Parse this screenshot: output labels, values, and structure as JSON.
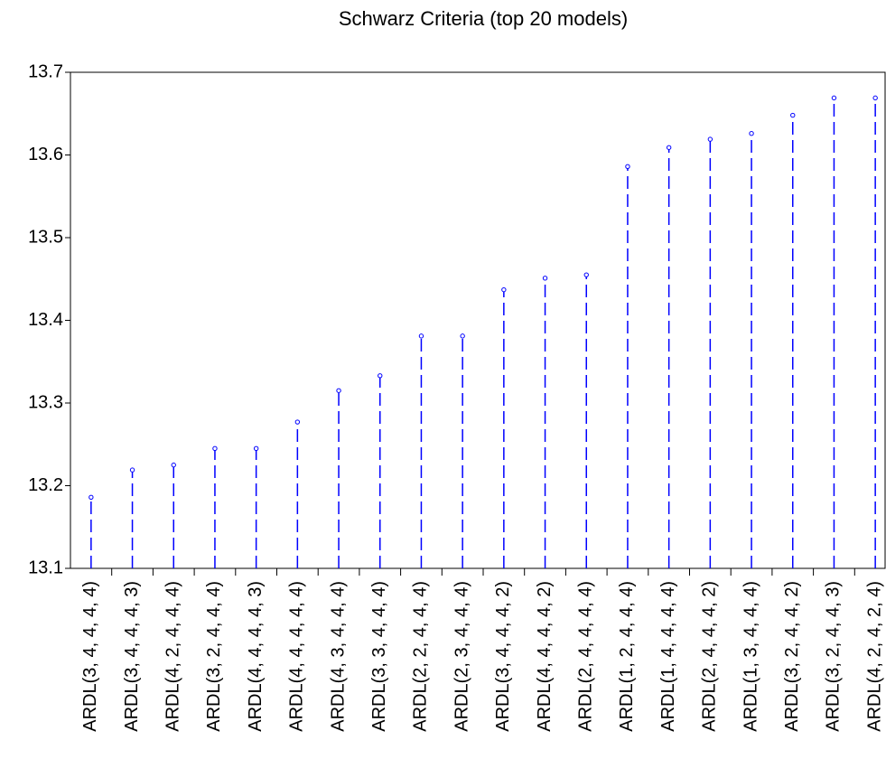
{
  "chart_data": {
    "type": "stem",
    "title": "Schwarz Criteria (top 20 models)",
    "categories": [
      "ARDL(3, 4, 4, 4, 4)",
      "ARDL(3, 4, 4, 4, 3)",
      "ARDL(4, 2, 4, 4, 4)",
      "ARDL(3, 2, 4, 4, 4)",
      "ARDL(4, 4, 4, 4, 3)",
      "ARDL(4, 4, 4, 4, 4)",
      "ARDL(4, 3, 4, 4, 4)",
      "ARDL(3, 3, 4, 4, 4)",
      "ARDL(2, 2, 4, 4, 4)",
      "ARDL(2, 3, 4, 4, 4)",
      "ARDL(3, 4, 4, 4, 2)",
      "ARDL(4, 4, 4, 4, 2)",
      "ARDL(2, 4, 4, 4, 4)",
      "ARDL(1, 2, 4, 4, 4)",
      "ARDL(1, 4, 4, 4, 4)",
      "ARDL(2, 4, 4, 4, 2)",
      "ARDL(1, 3, 4, 4, 4)",
      "ARDL(3, 2, 4, 4, 2)",
      "ARDL(3, 2, 4, 4, 3)",
      "ARDL(4, 2, 4, 2, 4)"
    ],
    "values": [
      13.186,
      13.219,
      13.225,
      13.245,
      13.245,
      13.277,
      13.315,
      13.333,
      13.381,
      13.381,
      13.437,
      13.451,
      13.455,
      13.586,
      13.609,
      13.619,
      13.626,
      13.648,
      13.669,
      13.669
    ],
    "color": "#0000ff",
    "ylim": [
      13.1,
      13.7
    ],
    "yticks": [
      13.1,
      13.2,
      13.3,
      13.4,
      13.5,
      13.6,
      13.7
    ]
  }
}
